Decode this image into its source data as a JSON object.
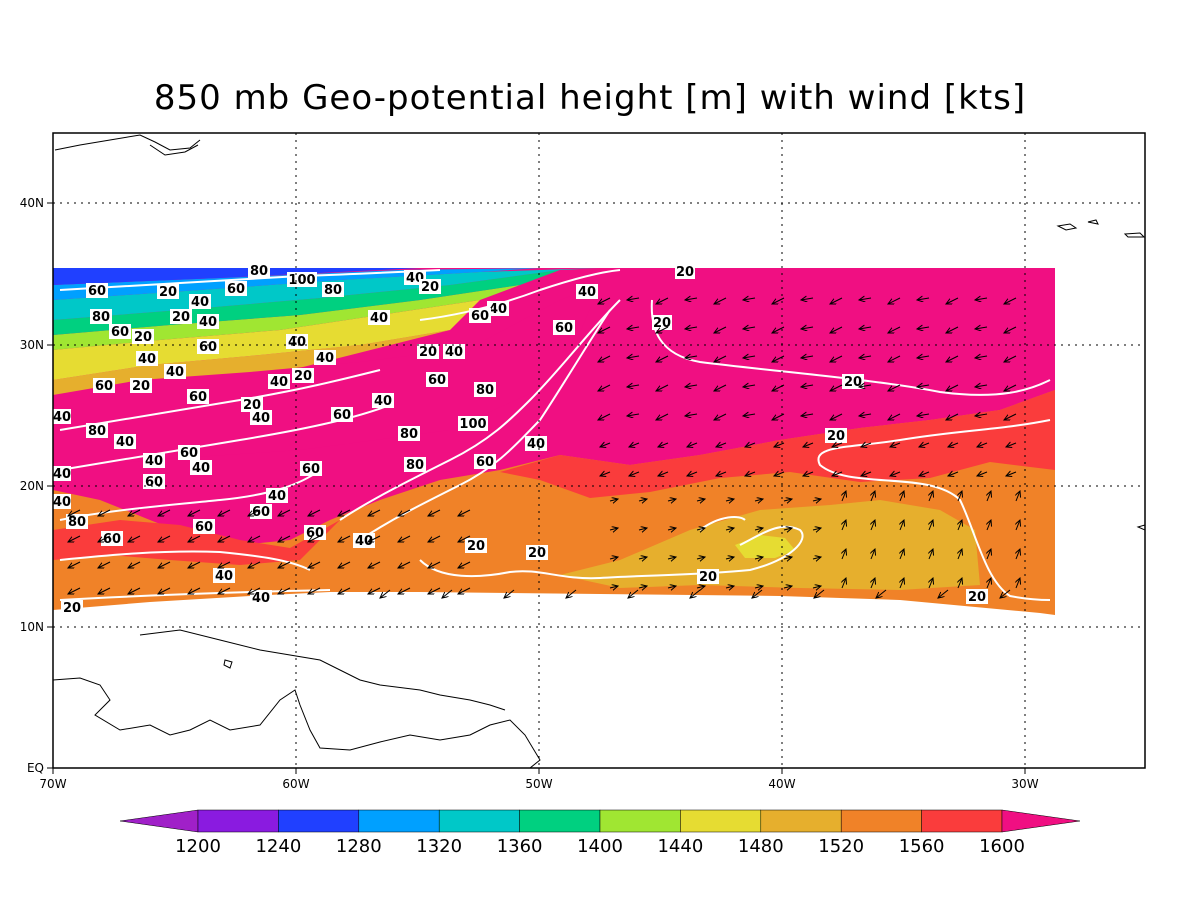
{
  "title": "850 mb Geo-potential height [m] with wind [kts]",
  "map": {
    "x_ticks": [
      "70W",
      "60W",
      "50W",
      "40W",
      "30W"
    ],
    "y_ticks": [
      "EQ",
      "10N",
      "20N",
      "30N",
      "40N"
    ],
    "lon_range": [
      -70,
      -25
    ],
    "lat_range": [
      0,
      45
    ]
  },
  "colorbar": {
    "labels": [
      "1200",
      "1240",
      "1280",
      "1320",
      "1360",
      "1400",
      "1440",
      "1480",
      "1520",
      "1560",
      "1600"
    ],
    "colors": [
      "#a020c8",
      "#8a1be0",
      "#2040ff",
      "#00a0ff",
      "#00c8c8",
      "#00d080",
      "#a0e632",
      "#e6dc32",
      "#e6af2d",
      "#f08228",
      "#fa3c3c",
      "#f00f82"
    ]
  },
  "wind_speed_contour_labels": [
    "20",
    "40",
    "60",
    "80",
    "100"
  ],
  "wind_speed_contour_levels": [
    20,
    40,
    60,
    80,
    100
  ]
}
